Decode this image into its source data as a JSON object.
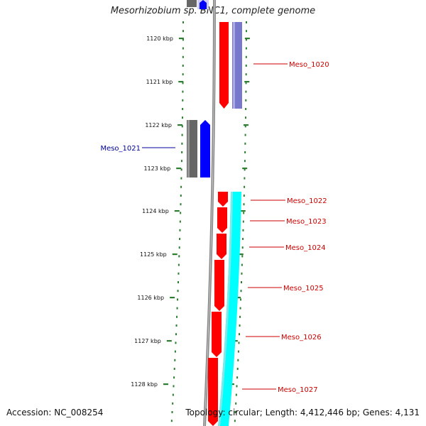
{
  "title": "Mesorhizobium sp. BNC1, complete genome",
  "footer": {
    "accession": "Accession: NC_008254",
    "topology": "Topology: circular; Length: 4,412,446 bp; Genes: 4,131"
  },
  "colors": {
    "forward_gene": "#ff0000",
    "reverse_gene": "#0000ff",
    "forward_cds": "#00ffff",
    "forward_cds_alt": "#7777cc",
    "reverse_cds": "#666666",
    "backbone": "#888888",
    "tick": "#2e7d32",
    "forward_label": "#cc0000",
    "reverse_label": "#000099"
  },
  "ticks": [
    {
      "label": "1120 kbp"
    },
    {
      "label": "1121 kbp"
    },
    {
      "label": "1122 kbp"
    },
    {
      "label": "1123 kbp"
    },
    {
      "label": "1124 kbp"
    },
    {
      "label": "1125 kbp"
    },
    {
      "label": "1126 kbp"
    },
    {
      "label": "1127 kbp"
    },
    {
      "label": "1128 kbp"
    }
  ],
  "genes": [
    {
      "name": "Meso_1020",
      "strand": "forward"
    },
    {
      "name": "Meso_1021",
      "strand": "reverse"
    },
    {
      "name": "Meso_1022",
      "strand": "forward"
    },
    {
      "name": "Meso_1023",
      "strand": "forward"
    },
    {
      "name": "Meso_1024",
      "strand": "forward"
    },
    {
      "name": "Meso_1025",
      "strand": "forward"
    },
    {
      "name": "Meso_1026",
      "strand": "forward"
    },
    {
      "name": "Meso_1027",
      "strand": "forward"
    }
  ]
}
